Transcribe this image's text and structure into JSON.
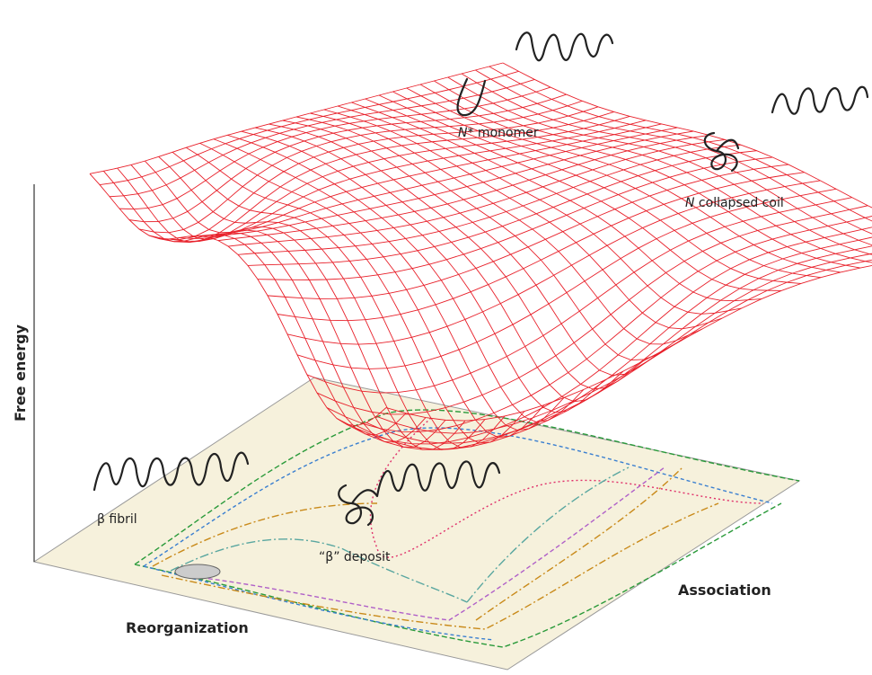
{
  "axes": {
    "vertical": "Free energy",
    "horizontal_left": "Reorganization",
    "horizontal_right": "Association"
  },
  "labels": {
    "monomer": [
      "N",
      "* monomer"
    ],
    "collapsed_coil": [
      "N",
      " collapsed coil"
    ],
    "fibril": "β fibril",
    "deposit": "“β” deposit"
  }
}
